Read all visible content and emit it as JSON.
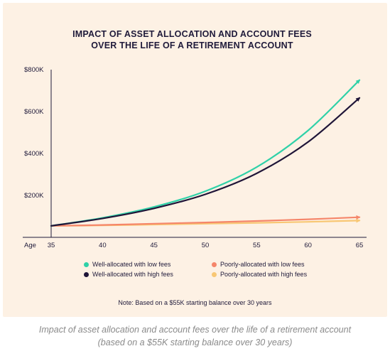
{
  "chart_data": {
    "type": "line",
    "title_line1": "IMPACT OF ASSET ALLOCATION AND ACCOUNT FEES",
    "title_line2": "OVER THE LIFE OF A RETIREMENT ACCOUNT",
    "xlabel": "Age",
    "x": [
      35,
      40,
      45,
      50,
      55,
      60,
      65
    ],
    "xlim": [
      35,
      65
    ],
    "ylim": [
      0,
      800000
    ],
    "yticks": [
      {
        "value": 200000,
        "label": "$200K"
      },
      {
        "value": 400000,
        "label": "$400K"
      },
      {
        "value": 600000,
        "label": "$600K"
      },
      {
        "value": 800000,
        "label": "$800K"
      }
    ],
    "grid": false,
    "legend_position": "bottom",
    "series": [
      {
        "name": "Well-allocated with low fees",
        "color": "#2fd1a8",
        "values": [
          55000,
          93000,
          145000,
          220000,
          335000,
          510000,
          750000
        ]
      },
      {
        "name": "Well-allocated with high fees",
        "color": "#1f1538",
        "values": [
          55000,
          90000,
          138000,
          205000,
          305000,
          455000,
          665000
        ]
      },
      {
        "name": "Poorly-allocated with low fees",
        "color": "#f5866a",
        "values": [
          55000,
          59000,
          65000,
          71000,
          78000,
          86000,
          96000
        ]
      },
      {
        "name": "Poorly-allocated with high fees",
        "color": "#f8c774",
        "values": [
          55000,
          57000,
          61000,
          65000,
          69000,
          74000,
          80000
        ]
      }
    ],
    "note": "Note: Based on a $55K starting balance over 30 years"
  },
  "caption_line1": "Impact of asset allocation and account fees over the life of a retirement account",
  "caption_line2": "(based on a $55K starting balance over 30 years)"
}
